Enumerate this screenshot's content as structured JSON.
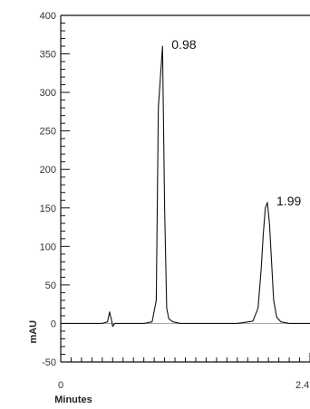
{
  "chart_data": {
    "type": "line",
    "title": "",
    "xlabel": "Minutes",
    "ylabel": "mAU",
    "xlim": [
      0,
      2.4
    ],
    "ylim": [
      -50,
      400
    ],
    "y_ticks": [
      -50,
      0,
      50,
      100,
      150,
      200,
      250,
      300,
      350,
      400
    ],
    "x_tick_labels": [
      {
        "value": 0,
        "label": "0"
      },
      {
        "value": 2.4,
        "label": "2.4"
      }
    ],
    "grid": false,
    "series": [
      {
        "x": [
          0,
          0.1,
          0.2,
          0.3,
          0.4,
          0.45,
          0.47,
          0.49,
          0.5,
          0.52,
          0.55,
          0.6,
          0.7,
          0.8,
          0.88,
          0.92,
          0.94,
          0.96,
          0.98,
          1.0,
          1.02,
          1.04,
          1.08,
          1.15,
          1.3,
          1.5,
          1.7,
          1.85,
          1.9,
          1.93,
          1.95,
          1.97,
          1.99,
          2.01,
          2.03,
          2.05,
          2.08,
          2.12,
          2.2,
          2.4
        ],
        "y": [
          0,
          0,
          0,
          0,
          0,
          2,
          15,
          4,
          -4,
          0,
          0,
          0,
          0,
          0,
          2,
          30,
          280,
          320,
          360,
          150,
          20,
          6,
          2,
          0,
          0,
          0,
          0,
          3,
          20,
          70,
          115,
          150,
          157,
          130,
          80,
          30,
          8,
          2,
          0,
          0
        ]
      }
    ],
    "annotations": [
      {
        "x": 0.98,
        "y": 360,
        "text": "0.98"
      },
      {
        "x": 1.99,
        "y": 157,
        "text": "1.99"
      }
    ]
  }
}
